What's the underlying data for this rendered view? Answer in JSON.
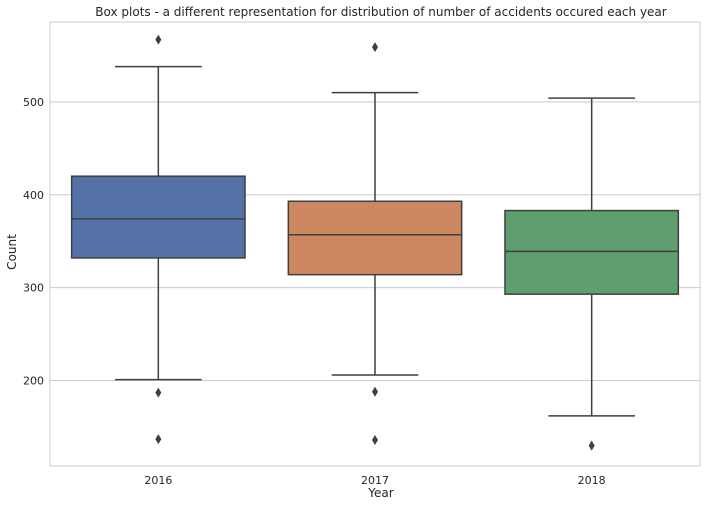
{
  "chart_data": {
    "type": "box",
    "title": "Box plots - a different representation for distribution of number of accidents occured each year",
    "xlabel": "Year",
    "ylabel": "Count",
    "ylim": [
      108,
      586
    ],
    "yticks": [
      200,
      300,
      400,
      500
    ],
    "grid": "horizontal",
    "categories": [
      "2016",
      "2017",
      "2018"
    ],
    "boxes": [
      {
        "category": "2016",
        "color": "#5572a8",
        "whisker_low": 201,
        "q1": 332,
        "median": 374,
        "q3": 420,
        "whisker_high": 538,
        "outliers": [
          567,
          187,
          137
        ]
      },
      {
        "category": "2017",
        "color": "#cd8862",
        "whisker_low": 206,
        "q1": 314,
        "median": 357,
        "q3": 393,
        "whisker_high": 510,
        "outliers": [
          559,
          188,
          136
        ]
      },
      {
        "category": "2018",
        "color": "#5f9e6e",
        "whisker_low": 162,
        "q1": 293,
        "median": 339,
        "q3": 383,
        "whisker_high": 504,
        "outliers": [
          130
        ]
      }
    ],
    "line_color": "#3f3f3f",
    "grid_color": "#cccccc",
    "frame_color": "#cccccc"
  }
}
